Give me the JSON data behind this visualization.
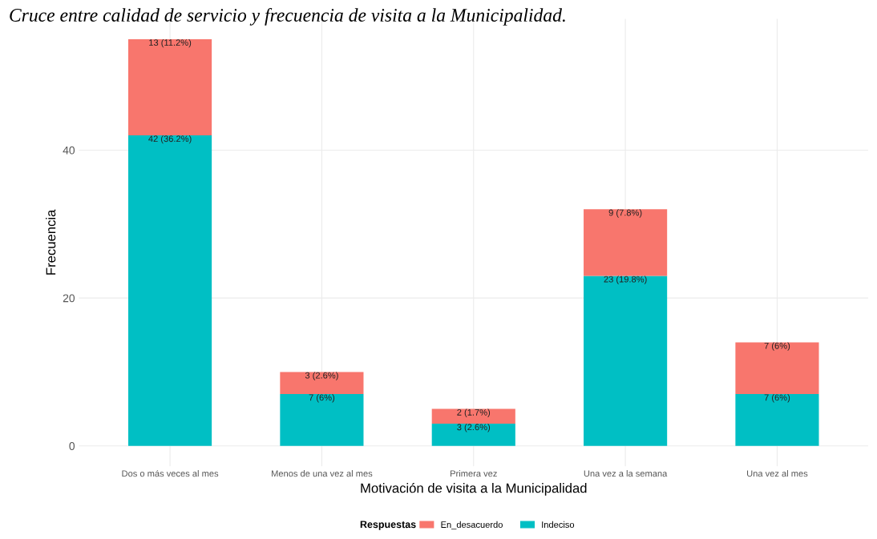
{
  "chart_data": {
    "type": "bar",
    "stacked": true,
    "title": "Cruce entre calidad de servicio y frecuencia de visita a la Municipalidad.",
    "xlabel": "Motivación de visita a la Municipalidad",
    "ylabel": "Frecuencia",
    "legend_title": "Respuestas",
    "categories": [
      "Dos o más veces al mes",
      "Menos de una vez al mes",
      "Primera vez",
      "Una vez a la semana",
      "Una vez al mes"
    ],
    "series": [
      {
        "name": "Indeciso",
        "color": "#00bfc4",
        "values": [
          42,
          7,
          3,
          23,
          7
        ],
        "value_labels": [
          "42 (36.2%)",
          "7 (6%)",
          "3 (2.6%)",
          "23 (19.8%)",
          "7 (6%)"
        ]
      },
      {
        "name": "En_desacuerdo",
        "color": "#f8766d",
        "values": [
          13,
          3,
          2,
          9,
          7
        ],
        "value_labels": [
          "13 (11.2%)",
          "3 (2.6%)",
          "2 (1.7%)",
          "9 (7.8%)",
          "7 (6%)"
        ]
      }
    ],
    "ylim": [
      -2.75,
      57.75
    ],
    "yticks": [
      0,
      20,
      40
    ],
    "grid": true,
    "legend": "bottom"
  }
}
